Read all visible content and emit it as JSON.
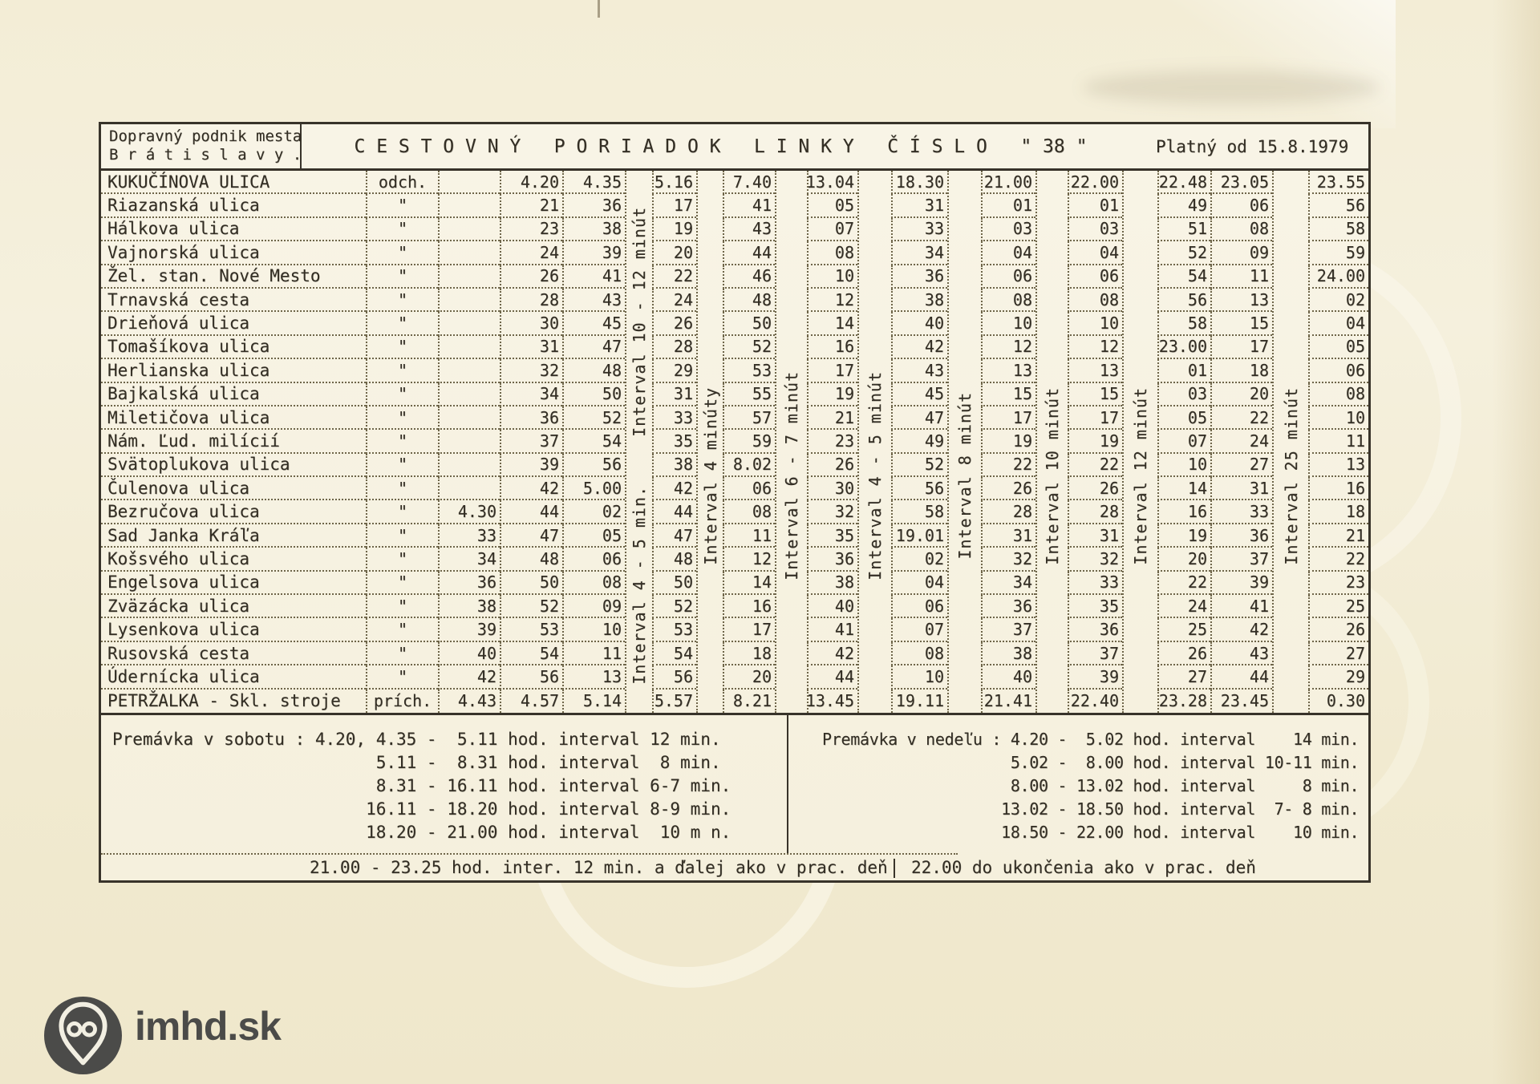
{
  "document": {
    "operator_line1": "Dopravný podnik mesta",
    "operator_line2": "B r á t i s l a v y .",
    "title": "C E S T O V N Ý   P O R I A D O K   L I N K Y   Č Í S L O   \" 38 \"",
    "validity": "Platný od 15.8.1979"
  },
  "timetable": {
    "column_headers": [
      "",
      "odch.",
      "",
      "4.20",
      "4.35",
      "5.16",
      "7.40",
      "13.04",
      "18.30",
      "21.00",
      "22.00",
      "22.48",
      "23.05",
      "23.55"
    ],
    "interval_labels": [
      [
        "Interval 10 - 12 minút",
        "Interval 4 - 5 min."
      ],
      [
        "Interval 4 minúty"
      ],
      [
        "Interval 6 - 7 minút"
      ],
      [
        "Interval 4 - 5 minút"
      ],
      [
        "Interval 8 minút"
      ],
      [
        "Interval 10 minút"
      ],
      [
        "Interval 12 minút"
      ],
      [
        "Interval 25 minút"
      ]
    ],
    "rows": [
      {
        "station": "KUKUČÍNOVA ULICA",
        "mark": "odch.",
        "times": [
          "",
          "4.20",
          "4.35",
          "5.16",
          "7.40",
          "13.04",
          "18.30",
          "21.00",
          "22.00",
          "22.48",
          "23.05",
          "23.55"
        ]
      },
      {
        "station": "Riazanská ulica",
        "mark": "\"",
        "times": [
          "",
          "21",
          "36",
          "17",
          "41",
          "05",
          "31",
          "01",
          "01",
          "49",
          "06",
          "56"
        ]
      },
      {
        "station": "Hálkova ulica",
        "mark": "\"",
        "times": [
          "",
          "23",
          "38",
          "19",
          "43",
          "07",
          "33",
          "03",
          "03",
          "51",
          "08",
          "58"
        ]
      },
      {
        "station": "Vajnorská ulica",
        "mark": "\"",
        "times": [
          "",
          "24",
          "39",
          "20",
          "44",
          "08",
          "34",
          "04",
          "04",
          "52",
          "09",
          "59"
        ]
      },
      {
        "station": "Žel. stan. Nové Mesto",
        "mark": "\"",
        "times": [
          "",
          "26",
          "41",
          "22",
          "46",
          "10",
          "36",
          "06",
          "06",
          "54",
          "11",
          "24.00"
        ]
      },
      {
        "station": "Trnavská cesta",
        "mark": "\"",
        "times": [
          "",
          "28",
          "43",
          "24",
          "48",
          "12",
          "38",
          "08",
          "08",
          "56",
          "13",
          "02"
        ]
      },
      {
        "station": "Drieňová ulica",
        "mark": "\"",
        "times": [
          "",
          "30",
          "45",
          "26",
          "50",
          "14",
          "40",
          "10",
          "10",
          "58",
          "15",
          "04"
        ]
      },
      {
        "station": "Tomašíkova ulica",
        "mark": "\"",
        "times": [
          "",
          "31",
          "47",
          "28",
          "52",
          "16",
          "42",
          "12",
          "12",
          "23.00",
          "17",
          "05"
        ]
      },
      {
        "station": "Herlianska ulica",
        "mark": "\"",
        "times": [
          "",
          "32",
          "48",
          "29",
          "53",
          "17",
          "43",
          "13",
          "13",
          "01",
          "18",
          "06"
        ]
      },
      {
        "station": "Bajkalská ulica",
        "mark": "\"",
        "times": [
          "",
          "34",
          "50",
          "31",
          "55",
          "19",
          "45",
          "15",
          "15",
          "03",
          "20",
          "08"
        ]
      },
      {
        "station": "Miletičova ulica",
        "mark": "\"",
        "times": [
          "",
          "36",
          "52",
          "33",
          "57",
          "21",
          "47",
          "17",
          "17",
          "05",
          "22",
          "10"
        ]
      },
      {
        "station": "Nám. Ľud. milícií",
        "mark": "\"",
        "times": [
          "",
          "37",
          "54",
          "35",
          "59",
          "23",
          "49",
          "19",
          "19",
          "07",
          "24",
          "11"
        ]
      },
      {
        "station": "Svätoplukova ulica",
        "mark": "\"",
        "times": [
          "",
          "39",
          "56",
          "38",
          "8.02",
          "26",
          "52",
          "22",
          "22",
          "10",
          "27",
          "13"
        ]
      },
      {
        "station": "Čulenova ulica",
        "mark": "\"",
        "times": [
          "",
          "42",
          "5.00",
          "42",
          "06",
          "30",
          "56",
          "26",
          "26",
          "14",
          "31",
          "16"
        ]
      },
      {
        "station": "Bezručova ulica",
        "mark": "\"",
        "times": [
          "4.30",
          "44",
          "02",
          "44",
          "08",
          "32",
          "58",
          "28",
          "28",
          "16",
          "33",
          "18"
        ]
      },
      {
        "station": "Sad Janka Kráľa",
        "mark": "\"",
        "times": [
          "33",
          "47",
          "05",
          "47",
          "11",
          "35",
          "19.01",
          "31",
          "31",
          "19",
          "36",
          "21"
        ]
      },
      {
        "station": "Košsvého ulica",
        "mark": "\"",
        "times": [
          "34",
          "48",
          "06",
          "48",
          "12",
          "36",
          "02",
          "32",
          "32",
          "20",
          "37",
          "22"
        ]
      },
      {
        "station": "Engelsova ulica",
        "mark": "\"",
        "times": [
          "36",
          "50",
          "08",
          "50",
          "14",
          "38",
          "04",
          "34",
          "33",
          "22",
          "39",
          "23"
        ]
      },
      {
        "station": "Zväzácka ulica",
        "mark": "\"",
        "times": [
          "38",
          "52",
          "09",
          "52",
          "16",
          "40",
          "06",
          "36",
          "35",
          "24",
          "41",
          "25"
        ]
      },
      {
        "station": "Lysenkova ulica",
        "mark": "\"",
        "times": [
          "39",
          "53",
          "10",
          "53",
          "17",
          "41",
          "07",
          "37",
          "36",
          "25",
          "42",
          "26"
        ]
      },
      {
        "station": "Rusovská cesta",
        "mark": "\"",
        "times": [
          "40",
          "54",
          "11",
          "54",
          "18",
          "42",
          "08",
          "38",
          "37",
          "26",
          "43",
          "27"
        ]
      },
      {
        "station": "Údernícka ulica",
        "mark": "\"",
        "times": [
          "42",
          "56",
          "13",
          "56",
          "20",
          "44",
          "10",
          "40",
          "39",
          "27",
          "44",
          "29"
        ]
      },
      {
        "station": "PETRŽALKA - Skl. stroje",
        "mark": "prích.",
        "times": [
          "4.43",
          "4.57",
          "5.14",
          "5.57",
          "8.21",
          "13.45",
          "19.11",
          "21.41",
          "22.40",
          "23.28",
          "23.45",
          "0.30"
        ]
      }
    ]
  },
  "notes_saturday": {
    "lines": [
      "Premávka v sobotu : 4.20, 4.35 -  5.11 hod. interval 12 min.",
      "                          5.11 -  8.31 hod. interval  8 min.",
      "                          8.31 - 16.11 hod. interval 6-7 min.",
      "                         16.11 - 18.20 hod. interval 8-9 min.",
      "                         18.20 - 21.00 hod. interval  10 m n.",
      "21.00 - 23.25 hod. inter. 12 min. a ďalej ako v prac. deň"
    ]
  },
  "notes_sunday": {
    "lines": [
      "Premávka v nedeľu : 4.20 -  5.02 hod. interval    14 min.",
      "                    5.02 -  8.00 hod. interval 10-11 min.",
      "                    8.00 - 13.02 hod. interval     8 min.",
      "                   13.02 - 18.50 hod. interval  7- 8 min.",
      "                   18.50 - 22.00 hod. interval    10 min.",
      "22.00 do ukončenia ako v prac. deň"
    ]
  },
  "watermark": {
    "text": "imhd.sk"
  },
  "colors": {
    "ink": "#332e24",
    "paper": "#f5f0dd",
    "logo": "#4b4b49"
  }
}
